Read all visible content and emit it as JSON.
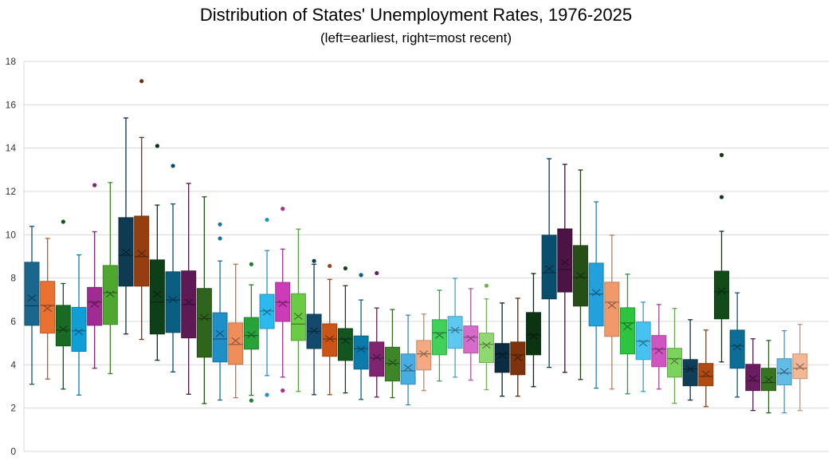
{
  "chart_data": {
    "type": "box",
    "title": "Distribution of States' Unemployment Rates, 1976-2025",
    "subtitle": "(left=earliest, right=most recent)",
    "xlabel": "",
    "ylabel": "",
    "ylim": [
      0,
      18
    ],
    "yticks": [
      "0",
      "2",
      "4",
      "6",
      "8",
      "10",
      "12",
      "14",
      "16",
      "18"
    ],
    "grid": true,
    "legend": "none",
    "box_fields": [
      "min",
      "q1",
      "median",
      "q3",
      "max",
      "mean",
      "outliers"
    ],
    "boxes": [
      {
        "min": 3.1,
        "q1": 5.82,
        "median": 6.72,
        "q3": 8.73,
        "max": 10.39,
        "mean": 7.08,
        "outliers": [],
        "color": "#1a668c"
      },
      {
        "min": 3.34,
        "q1": 5.46,
        "median": 6.74,
        "q3": 7.85,
        "max": 9.83,
        "mean": 6.6,
        "outliers": [],
        "color": "#e97132"
      },
      {
        "min": 2.88,
        "q1": 4.87,
        "median": 5.6,
        "q3": 6.74,
        "max": 7.75,
        "mean": 5.64,
        "outliers": [
          10.6
        ],
        "color": "#196b24"
      },
      {
        "min": 2.6,
        "q1": 4.62,
        "median": 5.57,
        "q3": 6.65,
        "max": 9.07,
        "mean": 5.52,
        "outliers": [],
        "color": "#0f9ed5"
      },
      {
        "min": 3.84,
        "q1": 5.82,
        "median": 6.9,
        "q3": 7.57,
        "max": 10.14,
        "mean": 6.8,
        "outliers": [
          12.29
        ],
        "color": "#a02b93"
      },
      {
        "min": 3.59,
        "q1": 5.86,
        "median": 7.33,
        "q3": 8.58,
        "max": 12.41,
        "mean": 7.27,
        "outliers": [],
        "color": "#4ea72e"
      },
      {
        "min": 5.42,
        "q1": 7.63,
        "median": 9.05,
        "q3": 10.79,
        "max": 15.39,
        "mean": 9.2,
        "outliers": [],
        "color": "#0e3a52"
      },
      {
        "min": 5.17,
        "q1": 7.63,
        "median": 8.99,
        "q3": 10.86,
        "max": 14.49,
        "mean": 9.14,
        "outliers": [
          17.09
        ],
        "color": "#953f10"
      },
      {
        "min": 4.21,
        "q1": 5.42,
        "median": 6.89,
        "q3": 8.84,
        "max": 11.37,
        "mean": 7.26,
        "outliers": [
          14.1
        ],
        "color": "#0f3f18"
      },
      {
        "min": 3.67,
        "q1": 5.49,
        "median": 6.99,
        "q3": 8.29,
        "max": 11.42,
        "mean": 7.01,
        "outliers": [
          13.18
        ],
        "color": "#0a5e82"
      },
      {
        "min": 2.64,
        "q1": 5.24,
        "median": 6.78,
        "q3": 8.33,
        "max": 12.37,
        "mean": 6.89,
        "outliers": [],
        "color": "#5f1a56"
      },
      {
        "min": 2.21,
        "q1": 4.35,
        "median": 6.13,
        "q3": 7.52,
        "max": 11.75,
        "mean": 6.18,
        "outliers": [],
        "color": "#2e641c"
      },
      {
        "min": 2.37,
        "q1": 4.13,
        "median": 5.19,
        "q3": 6.4,
        "max": 8.79,
        "mean": 5.44,
        "outliers": [
          10.48,
          9.83
        ],
        "color": "#1f8fc7"
      },
      {
        "min": 2.48,
        "q1": 4.02,
        "median": 4.94,
        "q3": 5.93,
        "max": 8.64,
        "mean": 5.11,
        "outliers": [],
        "color": "#ef8e5a"
      },
      {
        "min": 2.59,
        "q1": 4.72,
        "median": 5.35,
        "q3": 6.18,
        "max": 7.69,
        "mean": 5.39,
        "outliers": [
          8.64,
          2.35
        ],
        "color": "#27a33a"
      },
      {
        "min": 3.5,
        "q1": 5.67,
        "median": 6.48,
        "q3": 7.25,
        "max": 9.27,
        "mean": 6.43,
        "outliers": [
          10.69,
          2.61
        ],
        "color": "#2cb9ee"
      },
      {
        "min": 3.43,
        "q1": 6.0,
        "median": 6.88,
        "q3": 7.8,
        "max": 9.34,
        "mean": 6.82,
        "outliers": [
          11.2,
          2.81
        ],
        "color": "#cc3cb8"
      },
      {
        "min": 2.77,
        "q1": 5.12,
        "median": 5.88,
        "q3": 7.28,
        "max": 10.26,
        "mean": 6.24,
        "outliers": [],
        "color": "#6bcb45"
      },
      {
        "min": 2.62,
        "q1": 4.75,
        "median": 5.54,
        "q3": 6.33,
        "max": 8.64,
        "mean": 5.57,
        "outliers": [
          8.79
        ],
        "color": "#13496a"
      },
      {
        "min": 2.62,
        "q1": 4.39,
        "median": 5.19,
        "q3": 5.89,
        "max": 7.94,
        "mean": 5.2,
        "outliers": [
          8.56
        ],
        "color": "#cc5416"
      },
      {
        "min": 2.7,
        "q1": 4.2,
        "median": 5.19,
        "q3": 5.67,
        "max": 7.65,
        "mean": 5.11,
        "outliers": [
          8.45
        ],
        "color": "#135520"
      },
      {
        "min": 2.4,
        "q1": 3.8,
        "median": 4.74,
        "q3": 5.33,
        "max": 6.99,
        "mean": 4.72,
        "outliers": [
          8.14
        ],
        "color": "#0b7bab"
      },
      {
        "min": 2.51,
        "q1": 3.47,
        "median": 4.31,
        "q3": 5.05,
        "max": 6.62,
        "mean": 4.35,
        "outliers": [
          8.23
        ],
        "color": "#80246f"
      },
      {
        "min": 2.48,
        "q1": 3.25,
        "median": 4.06,
        "q3": 4.81,
        "max": 6.55,
        "mean": 4.1,
        "outliers": [],
        "color": "#3d8526"
      },
      {
        "min": 2.15,
        "q1": 3.1,
        "median": 3.72,
        "q3": 4.5,
        "max": 6.29,
        "mean": 3.87,
        "outliers": [],
        "color": "#48addf"
      },
      {
        "min": 2.81,
        "q1": 3.76,
        "median": 4.5,
        "q3": 5.12,
        "max": 6.34,
        "mean": 4.5,
        "outliers": [],
        "color": "#f3aa82"
      },
      {
        "min": 3.25,
        "q1": 4.46,
        "median": 5.47,
        "q3": 6.08,
        "max": 7.44,
        "mean": 5.37,
        "outliers": [],
        "color": "#41d05a"
      },
      {
        "min": 3.43,
        "q1": 4.76,
        "median": 5.6,
        "q3": 6.23,
        "max": 7.99,
        "mean": 5.6,
        "outliers": [],
        "color": "#5ec8f1"
      },
      {
        "min": 3.29,
        "q1": 4.54,
        "median": 5.27,
        "q3": 5.79,
        "max": 7.51,
        "mean": 5.21,
        "outliers": [],
        "color": "#d76bc9"
      },
      {
        "min": 2.85,
        "q1": 4.1,
        "median": 4.94,
        "q3": 5.46,
        "max": 7.04,
        "mean": 4.9,
        "outliers": [
          7.65
        ],
        "color": "#90d870"
      },
      {
        "min": 2.55,
        "q1": 3.65,
        "median": 4.5,
        "q3": 4.98,
        "max": 6.85,
        "mean": 4.45,
        "outliers": [],
        "color": "#0b2d41"
      },
      {
        "min": 2.55,
        "q1": 3.54,
        "median": 4.46,
        "q3": 5.05,
        "max": 7.07,
        "mean": 4.32,
        "outliers": [],
        "color": "#7e330c"
      },
      {
        "min": 2.99,
        "q1": 4.46,
        "median": 5.38,
        "q3": 6.41,
        "max": 8.21,
        "mean": 5.32,
        "outliers": [],
        "color": "#0b3412"
      },
      {
        "min": 3.88,
        "q1": 7.04,
        "median": 8.25,
        "q3": 9.98,
        "max": 13.51,
        "mean": 8.43,
        "outliers": [],
        "color": "#094e6c"
      },
      {
        "min": 3.65,
        "q1": 7.36,
        "median": 8.4,
        "q3": 10.27,
        "max": 13.25,
        "mean": 8.73,
        "outliers": [],
        "color": "#4c1444"
      },
      {
        "min": 3.32,
        "q1": 6.71,
        "median": 8.03,
        "q3": 9.5,
        "max": 12.99,
        "mean": 8.12,
        "outliers": [],
        "color": "#254f16"
      },
      {
        "min": 2.92,
        "q1": 5.79,
        "median": 7.26,
        "q3": 8.69,
        "max": 11.52,
        "mean": 7.33,
        "outliers": [],
        "color": "#24a0dc"
      },
      {
        "min": 2.88,
        "q1": 5.31,
        "median": 6.89,
        "q3": 7.81,
        "max": 9.98,
        "mean": 6.74,
        "outliers": [],
        "color": "#f09a6c"
      },
      {
        "min": 2.66,
        "q1": 4.5,
        "median": 5.93,
        "q3": 6.63,
        "max": 8.18,
        "mean": 5.76,
        "outliers": [],
        "color": "#2dc43f"
      },
      {
        "min": 2.77,
        "q1": 4.24,
        "median": 5.09,
        "q3": 5.97,
        "max": 6.89,
        "mean": 5.0,
        "outliers": [],
        "color": "#45c2f1"
      },
      {
        "min": 2.88,
        "q1": 3.91,
        "median": 4.72,
        "q3": 5.35,
        "max": 6.78,
        "mean": 4.65,
        "outliers": [],
        "color": "#d054c2"
      },
      {
        "min": 2.22,
        "q1": 3.43,
        "median": 4.28,
        "q3": 4.76,
        "max": 6.6,
        "mean": 4.17,
        "outliers": [],
        "color": "#7ad35a"
      },
      {
        "min": 2.37,
        "q1": 3.03,
        "median": 3.8,
        "q3": 4.24,
        "max": 6.08,
        "mean": 3.8,
        "outliers": [],
        "color": "#103e58"
      },
      {
        "min": 2.07,
        "q1": 3.03,
        "median": 3.47,
        "q3": 4.06,
        "max": 5.6,
        "mean": 3.58,
        "outliers": [],
        "color": "#b04c12"
      },
      {
        "min": 4.13,
        "q1": 6.12,
        "median": 7.37,
        "q3": 8.32,
        "max": 10.16,
        "mean": 7.4,
        "outliers": [
          13.68,
          11.74
        ],
        "color": "#124a1a"
      },
      {
        "min": 2.51,
        "q1": 3.84,
        "median": 4.87,
        "q3": 5.6,
        "max": 7.32,
        "mean": 4.82,
        "outliers": [],
        "color": "#0c6e96"
      },
      {
        "min": 1.89,
        "q1": 2.81,
        "median": 3.25,
        "q3": 4.02,
        "max": 5.2,
        "mean": 3.38,
        "outliers": [],
        "color": "#6a1d60"
      },
      {
        "min": 1.78,
        "q1": 2.81,
        "median": 3.18,
        "q3": 3.84,
        "max": 5.12,
        "mean": 3.32,
        "outliers": [],
        "color": "#357520"
      },
      {
        "min": 1.78,
        "q1": 3.07,
        "median": 3.62,
        "q3": 4.28,
        "max": 5.57,
        "mean": 3.69,
        "outliers": [],
        "color": "#62bce6"
      },
      {
        "min": 1.89,
        "q1": 3.36,
        "median": 3.84,
        "q3": 4.5,
        "max": 5.86,
        "mean": 3.91,
        "outliers": [],
        "color": "#f2b794"
      }
    ]
  }
}
